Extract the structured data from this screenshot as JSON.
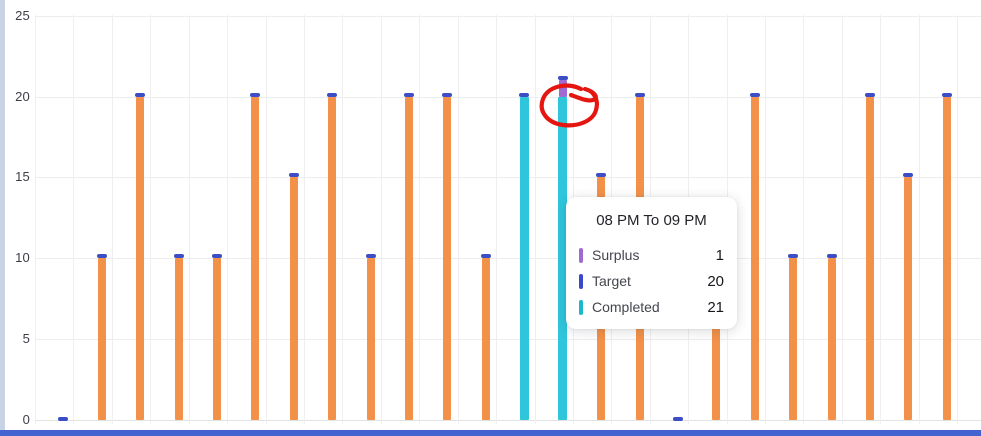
{
  "colors": {
    "background": "#ffffff",
    "left_strip": "#c9d3e6",
    "bottom_bar": "#4263d0",
    "grid": "#ededed",
    "axis_label": "#3b3e45"
  },
  "chart_data": {
    "type": "bar",
    "title": "",
    "xlabel": "",
    "ylabel": "",
    "ylim": [
      0,
      25
    ],
    "yticks": [
      0,
      5,
      10,
      15,
      20,
      25
    ],
    "grid": true,
    "legend_position": "none",
    "bar_count": 24,
    "categories": [
      null,
      null,
      null,
      null,
      null,
      null,
      null,
      null,
      null,
      null,
      null,
      null,
      null,
      "08 PM To 09 PM",
      null,
      null,
      null,
      null,
      null,
      null,
      null,
      null,
      null,
      null
    ],
    "series": [
      {
        "name": "Completed",
        "color": "#f3914a",
        "highlighted_color": "#2fc6dc",
        "values": [
          0,
          10,
          20,
          10,
          10,
          20,
          15,
          20,
          10,
          20,
          20,
          10,
          20,
          21,
          15,
          20,
          0,
          10,
          20,
          10,
          10,
          20,
          15,
          20
        ]
      },
      {
        "name": "Target",
        "color": "#3c4ec5",
        "values": [
          0,
          10,
          20,
          10,
          10,
          20,
          15,
          20,
          10,
          20,
          20,
          10,
          20,
          20,
          15,
          20,
          0,
          10,
          20,
          10,
          10,
          20,
          15,
          20
        ]
      },
      {
        "name": "Surplus",
        "color": "#a06ad2",
        "values": [
          0,
          0,
          0,
          0,
          0,
          0,
          0,
          0,
          0,
          0,
          0,
          0,
          0,
          1,
          0,
          0,
          0,
          0,
          0,
          0,
          0,
          0,
          0,
          0
        ]
      }
    ],
    "highlighted_indices": [
      12,
      13
    ],
    "hovered_bar_index": 13
  },
  "tooltip": {
    "title": "08 PM To 09 PM",
    "rows": [
      {
        "label": "Surplus",
        "value": "1",
        "color": "#a06ad2"
      },
      {
        "label": "Target",
        "value": "20",
        "color": "#3a49cc"
      },
      {
        "label": "Completed",
        "value": "21",
        "color": "#18b8ce"
      }
    ]
  },
  "annotation": {
    "shape": "hand-drawn-circle",
    "color": "#e51510",
    "target": "top of hovered completed bar (value 21)"
  }
}
